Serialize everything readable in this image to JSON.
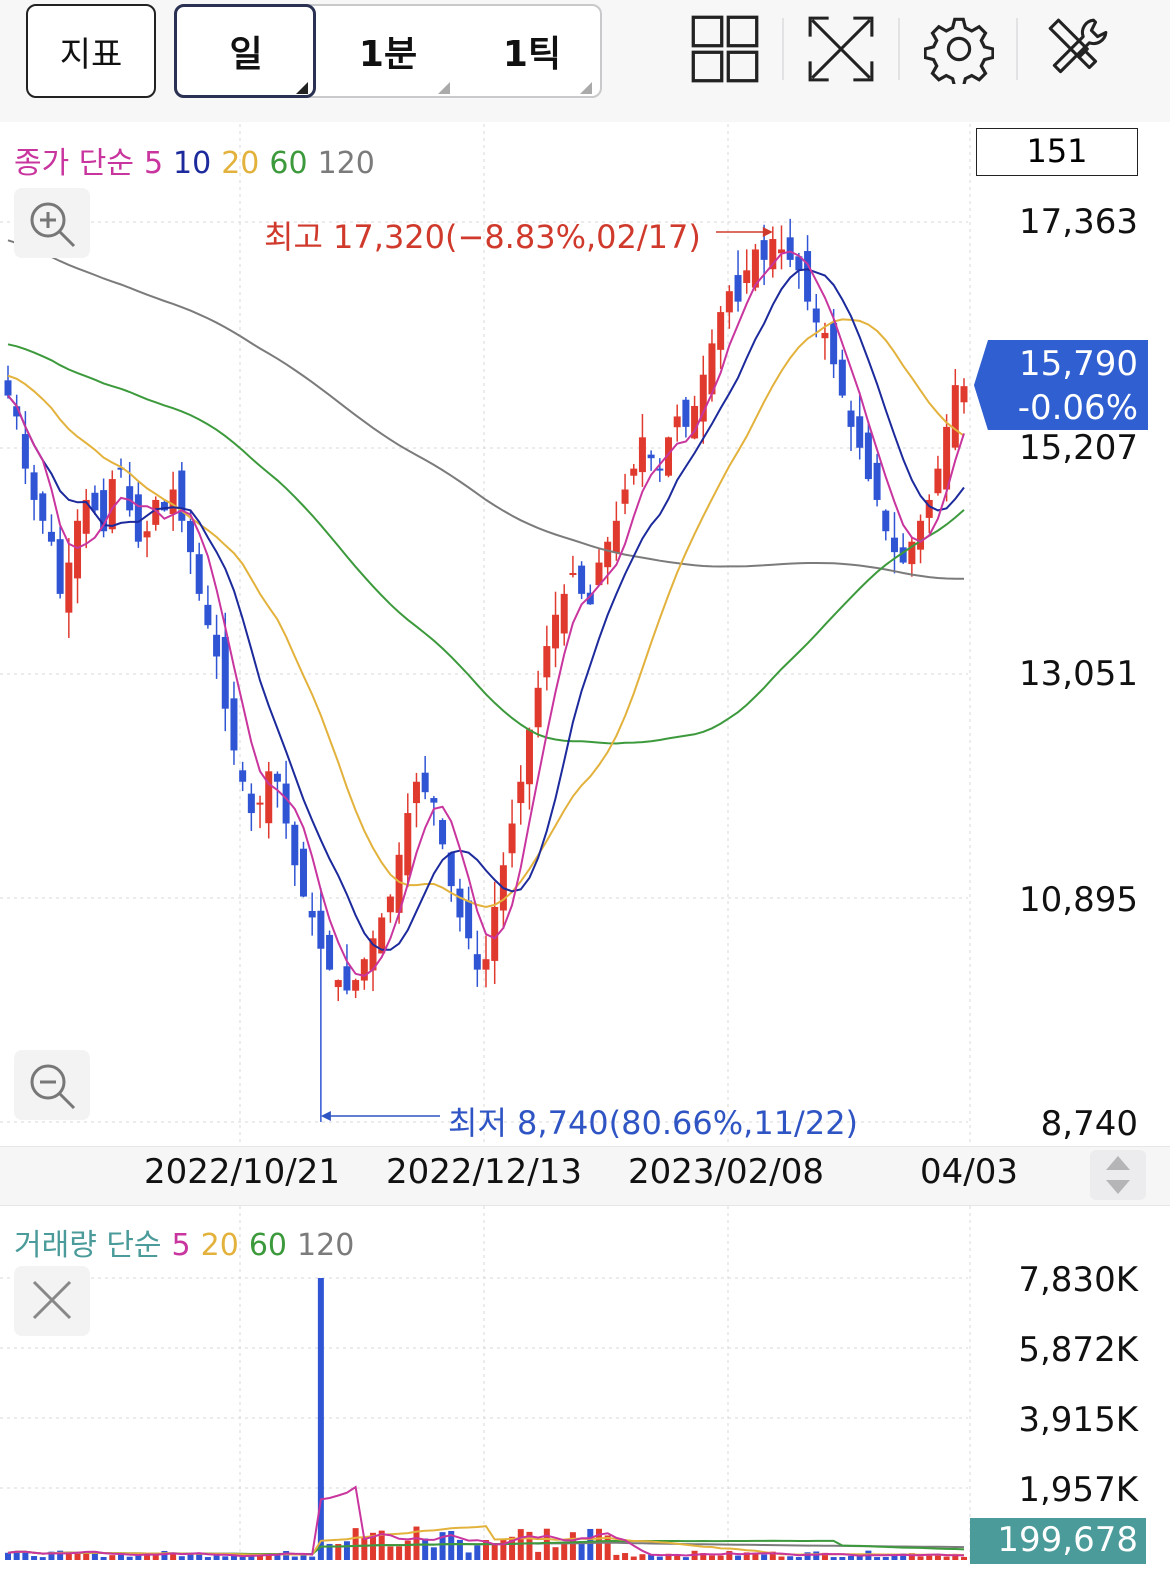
{
  "toolbar": {
    "indicator_label": "지표",
    "period_tabs": [
      "일",
      "1분",
      "1틱"
    ],
    "icons": [
      "grid-layout-icon",
      "fullscreen-icon",
      "settings-icon",
      "tools-icon"
    ]
  },
  "price_panel": {
    "legend": {
      "prefix": "종가 단순",
      "periods": [
        "5",
        "10",
        "20",
        "60",
        "120"
      ]
    },
    "count_box": "151",
    "y_ticks": [
      "17,363",
      "15,207",
      "13,051",
      "10,895",
      "8,740"
    ],
    "current_price": "15,790",
    "current_change": "-0.06%",
    "high_annotation": "최고 17,320(−8.83%,02/17)",
    "low_annotation": "최저 8,740(80.66%,11/22)",
    "x_ticks": [
      "2022/10/21",
      "2022/12/13",
      "2023/02/08",
      "04/03"
    ]
  },
  "volume_panel": {
    "legend": {
      "prefix": "거래량 단순",
      "periods": [
        "5",
        "20",
        "60",
        "120"
      ]
    },
    "y_ticks": [
      "7,830K",
      "5,872K",
      "3,915K",
      "1,957K"
    ],
    "current_volume": "199,678"
  },
  "colors": {
    "up": "#e03a2f",
    "down": "#2f55d4",
    "ma5": "#c9359e",
    "ma10": "#1c2a9c",
    "ma20": "#e3b23c",
    "ma60": "#3c9a3c",
    "ma120": "#7b7b7b",
    "price_tag": "#2f5fd0",
    "volume_tag": "#4a9b9a"
  },
  "chart_data": {
    "type": "candlestick",
    "price_range": [
      8740,
      17363
    ],
    "closes": [
      15700,
      15500,
      15000,
      14700,
      14500,
      14300,
      13800,
      14100,
      14500,
      14700,
      14600,
      14400,
      14900,
      15000,
      14600,
      14300,
      14400,
      14700,
      14600,
      14800,
      14500,
      14200,
      13800,
      13500,
      13200,
      12700,
      12300,
      12000,
      11700,
      11800,
      12100,
      12000,
      11600,
      11200,
      10900,
      10700,
      10400,
      10200,
      10100,
      10000,
      10100,
      10300,
      10500,
      10700,
      10900,
      11300,
      11700,
      12000,
      11900,
      11800,
      11400,
      11000,
      10700,
      10500,
      10200,
      10300,
      10800,
      11200,
      11600,
      12000,
      12500,
      12900,
      13300,
      13600,
      13800,
      14000,
      13800,
      13700,
      14100,
      14300,
      14500,
      14800,
      15000,
      15300,
      15100,
      15000,
      15300,
      15500,
      15400,
      15600,
      15900,
      16200,
      16500,
      16700,
      16600,
      16900,
      17100,
      17000,
      17200,
      17100,
      17000,
      16900,
      16600,
      16400,
      16300,
      16000,
      15700,
      15400,
      15200,
      14900,
      14700,
      14400,
      14200,
      14100,
      14300,
      14500,
      14700,
      15000,
      15400,
      15800,
      15790
    ],
    "volume_range_k": [
      0,
      7830
    ],
    "notable_volume_k": [
      {
        "label": "spike near 11/22",
        "value": 7830
      }
    ],
    "last_volume": 199678
  }
}
